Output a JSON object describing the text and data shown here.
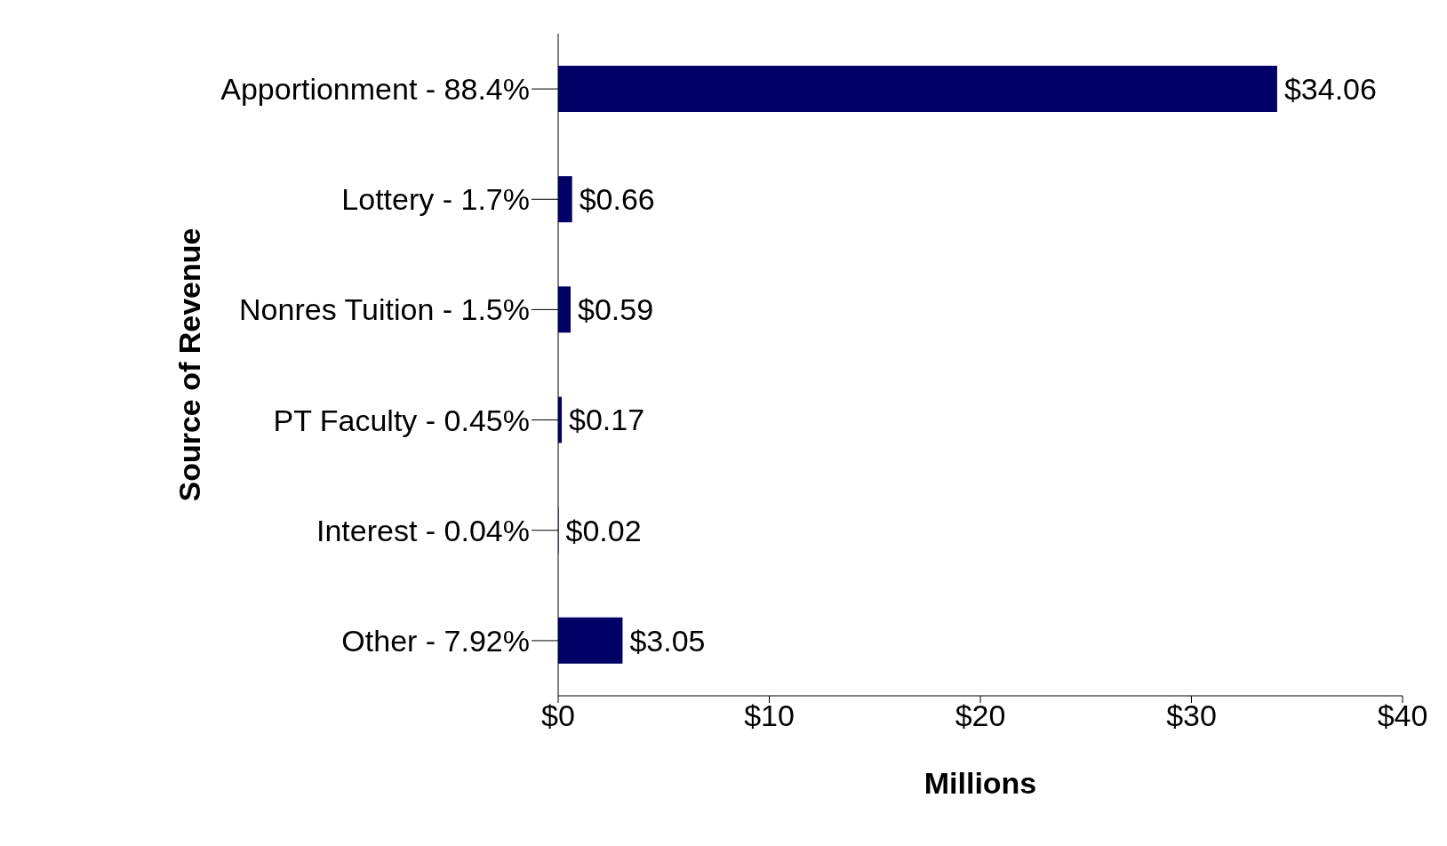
{
  "chart_data": {
    "type": "bar",
    "orientation": "horizontal",
    "xlabel": "Millions",
    "ylabel": "Source of Revenue",
    "categories": [
      "Apportionment - 88.4%",
      "Lottery - 1.7%",
      "Nonres Tuition - 1.5%",
      "PT Faculty - 0.45%",
      "Interest - 0.04%",
      "Other - 7.92%"
    ],
    "values": [
      34.06,
      0.66,
      0.59,
      0.17,
      0.02,
      3.05
    ],
    "value_labels": [
      "$34.06",
      "$0.66",
      "$0.59",
      "$0.17",
      "$0.02",
      "$3.05"
    ],
    "color": "#000066",
    "xlim": [
      0,
      40
    ],
    "xticks": [
      {
        "value": 0,
        "label": "$0"
      },
      {
        "value": 10,
        "label": "$10"
      },
      {
        "value": 20,
        "label": "$20"
      },
      {
        "value": 30,
        "label": "$30"
      },
      {
        "value": 40,
        "label": "$40"
      }
    ],
    "grid": false,
    "legend": false
  }
}
